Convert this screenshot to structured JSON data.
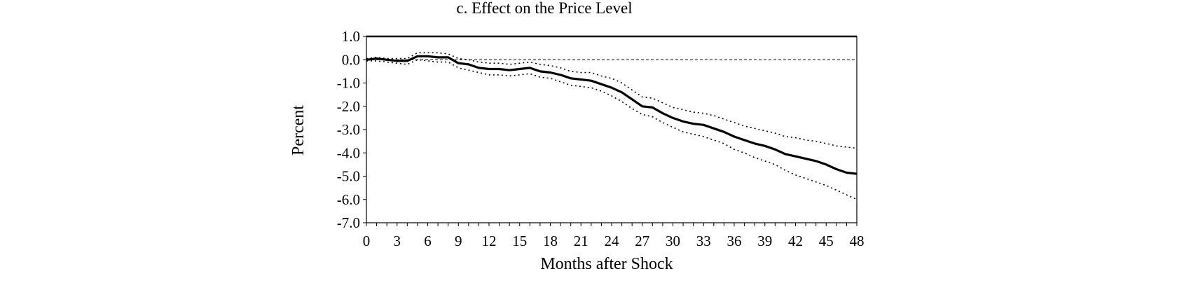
{
  "chart_data": {
    "type": "line",
    "title": "c.  Effect on the Price Level",
    "xlabel": "Months after Shock",
    "ylabel": "Percent",
    "xlim": [
      0,
      48
    ],
    "ylim": [
      -7.0,
      1.0
    ],
    "xticks": [
      0,
      3,
      6,
      9,
      12,
      15,
      18,
      21,
      24,
      27,
      30,
      33,
      36,
      39,
      42,
      45,
      48
    ],
    "xtick_labels": [
      "0",
      "3",
      "6",
      "9",
      "12",
      "15",
      "18",
      "21",
      "24",
      "27",
      "30",
      "33",
      "36",
      "39",
      "42",
      "45",
      "48"
    ],
    "yticks": [
      1.0,
      0.0,
      -1.0,
      -2.0,
      -3.0,
      -4.0,
      -5.0,
      -6.0,
      -7.0
    ],
    "ytick_labels": [
      "1.0",
      "0.0",
      "-1.0",
      "-2.0",
      "-3.0",
      "-4.0",
      "-5.0",
      "-6.0",
      "-7.0"
    ],
    "grid": false,
    "zero_line": true,
    "series": [
      {
        "style": "solid-thick",
        "x": [
          0,
          1,
          2,
          3,
          4,
          5,
          6,
          7,
          8,
          9,
          10,
          11,
          12,
          13,
          14,
          15,
          16,
          17,
          18,
          19,
          20,
          21,
          22,
          23,
          24,
          25,
          26,
          27,
          28,
          29,
          30,
          31,
          32,
          33,
          34,
          35,
          36,
          37,
          38,
          39,
          40,
          41,
          42,
          43,
          44,
          45,
          46,
          47,
          48
        ],
        "y": [
          0.0,
          0.05,
          0.0,
          -0.05,
          -0.05,
          0.15,
          0.15,
          0.1,
          0.1,
          -0.15,
          -0.2,
          -0.35,
          -0.4,
          -0.4,
          -0.45,
          -0.4,
          -0.35,
          -0.5,
          -0.55,
          -0.65,
          -0.8,
          -0.85,
          -0.9,
          -1.05,
          -1.2,
          -1.4,
          -1.7,
          -2.0,
          -2.05,
          -2.3,
          -2.5,
          -2.65,
          -2.75,
          -2.8,
          -2.95,
          -3.1,
          -3.3,
          -3.45,
          -3.6,
          -3.7,
          -3.85,
          -4.05,
          -4.15,
          -4.25,
          -4.35,
          -4.5,
          -4.7,
          -4.85,
          -4.9
        ]
      },
      {
        "style": "dotted",
        "x": [
          0,
          1,
          2,
          3,
          4,
          5,
          6,
          7,
          8,
          9,
          10,
          11,
          12,
          13,
          14,
          15,
          16,
          17,
          18,
          19,
          20,
          21,
          22,
          23,
          24,
          25,
          26,
          27,
          28,
          29,
          30,
          31,
          32,
          33,
          34,
          35,
          36,
          37,
          38,
          39,
          40,
          41,
          42,
          43,
          44,
          45,
          46,
          47,
          48
        ],
        "y": [
          0.05,
          0.1,
          0.05,
          0.05,
          0.05,
          0.3,
          0.3,
          0.3,
          0.25,
          0.05,
          0.0,
          -0.1,
          -0.15,
          -0.15,
          -0.2,
          -0.15,
          -0.1,
          -0.2,
          -0.25,
          -0.35,
          -0.5,
          -0.55,
          -0.55,
          -0.7,
          -0.8,
          -1.0,
          -1.3,
          -1.6,
          -1.65,
          -1.85,
          -2.05,
          -2.15,
          -2.25,
          -2.3,
          -2.4,
          -2.55,
          -2.7,
          -2.85,
          -2.95,
          -3.05,
          -3.15,
          -3.3,
          -3.35,
          -3.45,
          -3.5,
          -3.6,
          -3.7,
          -3.75,
          -3.8
        ]
      },
      {
        "style": "dotted",
        "x": [
          0,
          1,
          2,
          3,
          4,
          5,
          6,
          7,
          8,
          9,
          10,
          11,
          12,
          13,
          14,
          15,
          16,
          17,
          18,
          19,
          20,
          21,
          22,
          23,
          24,
          25,
          26,
          27,
          28,
          29,
          30,
          31,
          32,
          33,
          34,
          35,
          36,
          37,
          38,
          39,
          40,
          41,
          42,
          43,
          44,
          45,
          46,
          47,
          48
        ],
        "y": [
          -0.05,
          -0.05,
          -0.1,
          -0.15,
          -0.2,
          0.0,
          -0.05,
          -0.1,
          -0.1,
          -0.35,
          -0.45,
          -0.55,
          -0.65,
          -0.65,
          -0.7,
          -0.65,
          -0.6,
          -0.75,
          -0.8,
          -0.95,
          -1.1,
          -1.15,
          -1.2,
          -1.35,
          -1.55,
          -1.8,
          -2.1,
          -2.35,
          -2.45,
          -2.7,
          -2.9,
          -3.1,
          -3.2,
          -3.3,
          -3.45,
          -3.6,
          -3.85,
          -4.0,
          -4.2,
          -4.35,
          -4.5,
          -4.75,
          -4.95,
          -5.1,
          -5.25,
          -5.4,
          -5.6,
          -5.8,
          -6.0
        ]
      }
    ]
  }
}
